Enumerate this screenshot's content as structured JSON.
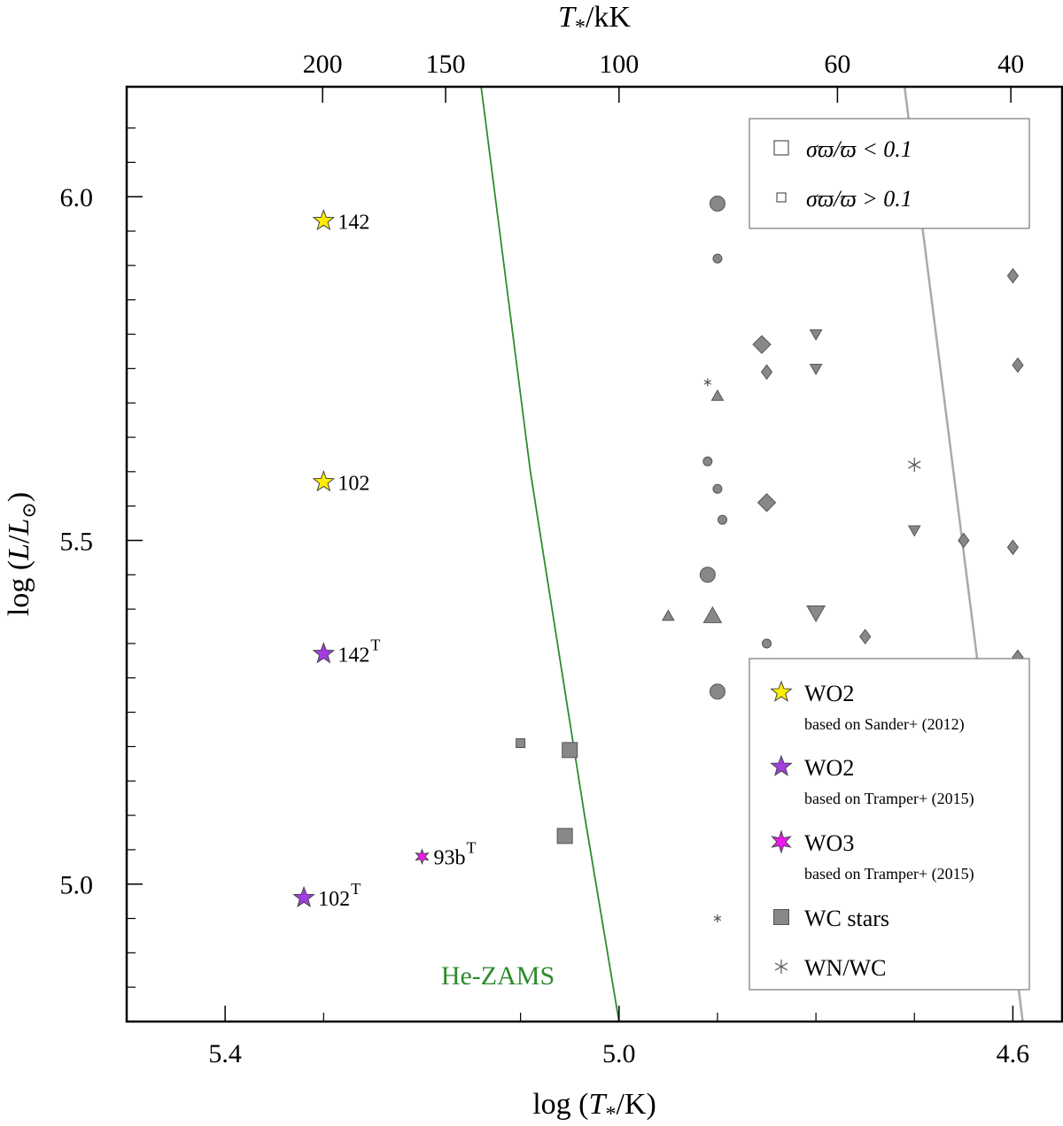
{
  "chart_data": {
    "type": "scatter",
    "title": "",
    "xlabel": "log (T*/K)",
    "ylabel": "log (L/L⊙)",
    "top_xlabel": "T*/kK",
    "xlim": [
      5.5,
      4.55
    ],
    "ylim": [
      4.8,
      6.16
    ],
    "x_ticks": [
      {
        "value": 5.4,
        "label": "5.4"
      },
      {
        "value": 5.0,
        "label": "5.0"
      },
      {
        "value": 4.6,
        "label": "4.6"
      }
    ],
    "y_ticks": [
      {
        "value": 6.0,
        "label": "6.0"
      },
      {
        "value": 5.5,
        "label": "5.5"
      },
      {
        "value": 5.0,
        "label": "5.0"
      }
    ],
    "top_ticks": [
      {
        "value": 200,
        "label": "200"
      },
      {
        "value": 150,
        "label": "150"
      },
      {
        "value": 100,
        "label": "100"
      },
      {
        "value": 60,
        "label": "60"
      },
      {
        "value": 40,
        "label": "40"
      }
    ],
    "lines": [
      {
        "name": "He-ZAMS",
        "color": "#2e8b2e",
        "label": "He-ZAMS",
        "points": [
          [
            5.14,
            6.16
          ],
          [
            5.09,
            5.6
          ],
          [
            5.035,
            5.1
          ],
          [
            5.0,
            4.8
          ]
        ]
      },
      {
        "name": "H-ZAMS",
        "color": "#aaaaaa",
        "label": "",
        "points": [
          [
            4.71,
            6.16
          ],
          [
            4.663,
            5.63
          ],
          [
            4.625,
            5.2
          ],
          [
            4.59,
            4.8
          ]
        ]
      }
    ],
    "stars": [
      {
        "name": "WO2 (Sander+ 2012)",
        "x": 5.3,
        "y": 5.965,
        "label": "142",
        "sup": "",
        "color": "#ffee00"
      },
      {
        "name": "WO2 (Sander+ 2012)",
        "x": 5.3,
        "y": 5.585,
        "label": "102",
        "sup": "",
        "color": "#ffee00"
      },
      {
        "name": "WO2 (Tramper+ 2015)",
        "x": 5.3,
        "y": 5.335,
        "label": "142",
        "sup": "T",
        "color": "#a23ee0"
      },
      {
        "name": "WO2 (Tramper+ 2015)",
        "x": 5.32,
        "y": 4.98,
        "label": "102",
        "sup": "T",
        "color": "#a23ee0"
      },
      {
        "name": "WO3 (Tramper+ 2015)",
        "x": 5.2,
        "y": 5.04,
        "label": "93b",
        "sup": "T",
        "color": "#ee1aee"
      }
    ],
    "gray_points": [
      {
        "x": 4.9,
        "y": 5.99,
        "shape": "circle",
        "size": "large"
      },
      {
        "x": 4.9,
        "y": 5.91,
        "shape": "circle",
        "size": "small"
      },
      {
        "x": 4.91,
        "y": 5.615,
        "shape": "circle",
        "size": "small"
      },
      {
        "x": 4.9,
        "y": 5.575,
        "shape": "circle",
        "size": "small"
      },
      {
        "x": 4.895,
        "y": 5.53,
        "shape": "circle",
        "size": "small"
      },
      {
        "x": 4.91,
        "y": 5.45,
        "shape": "circle",
        "size": "large"
      },
      {
        "x": 4.85,
        "y": 5.35,
        "shape": "circle",
        "size": "small"
      },
      {
        "x": 4.9,
        "y": 5.28,
        "shape": "circle",
        "size": "large"
      },
      {
        "x": 4.855,
        "y": 5.785,
        "shape": "diamond",
        "size": "large"
      },
      {
        "x": 4.85,
        "y": 5.745,
        "shape": "diamond",
        "size": "small"
      },
      {
        "x": 4.85,
        "y": 5.555,
        "shape": "diamond",
        "size": "large"
      },
      {
        "x": 4.75,
        "y": 5.36,
        "shape": "diamond",
        "size": "small"
      },
      {
        "x": 4.6,
        "y": 5.885,
        "shape": "diamond",
        "size": "small"
      },
      {
        "x": 4.595,
        "y": 5.755,
        "shape": "diamond",
        "size": "small"
      },
      {
        "x": 4.65,
        "y": 5.5,
        "shape": "diamond",
        "size": "small"
      },
      {
        "x": 4.6,
        "y": 5.49,
        "shape": "diamond",
        "size": "small"
      },
      {
        "x": 4.595,
        "y": 5.33,
        "shape": "diamond",
        "size": "small"
      },
      {
        "x": 4.655,
        "y": 5.26,
        "shape": "diamond",
        "size": "small"
      },
      {
        "x": 4.645,
        "y": 5.245,
        "shape": "diamond",
        "size": "small"
      },
      {
        "x": 4.655,
        "y": 5.225,
        "shape": "diamond",
        "size": "small"
      },
      {
        "x": 4.645,
        "y": 5.215,
        "shape": "diamond",
        "size": "small"
      },
      {
        "x": 4.8,
        "y": 5.8,
        "shape": "triangle-down",
        "size": "small"
      },
      {
        "x": 4.8,
        "y": 5.75,
        "shape": "triangle-down",
        "size": "small"
      },
      {
        "x": 4.7,
        "y": 5.515,
        "shape": "triangle-down",
        "size": "small"
      },
      {
        "x": 4.8,
        "y": 5.395,
        "shape": "triangle-down",
        "size": "large"
      },
      {
        "x": 4.9,
        "y": 5.71,
        "shape": "triangle-up",
        "size": "small"
      },
      {
        "x": 4.95,
        "y": 5.39,
        "shape": "triangle-up",
        "size": "small"
      },
      {
        "x": 4.905,
        "y": 5.39,
        "shape": "triangle-up",
        "size": "large"
      },
      {
        "x": 5.1,
        "y": 5.205,
        "shape": "square",
        "size": "small"
      },
      {
        "x": 5.05,
        "y": 5.195,
        "shape": "square",
        "size": "large"
      },
      {
        "x": 5.055,
        "y": 5.07,
        "shape": "square",
        "size": "large"
      },
      {
        "x": 4.91,
        "y": 5.73,
        "shape": "asterisk",
        "size": "small"
      },
      {
        "x": 4.7,
        "y": 5.61,
        "shape": "asterisk",
        "size": "large"
      },
      {
        "x": 4.9,
        "y": 4.95,
        "shape": "asterisk",
        "size": "small"
      }
    ],
    "legend_top": {
      "placement": "top-right",
      "entries": [
        {
          "symbol": "square-large",
          "text": "σϖ/ϖ < 0.1"
        },
        {
          "symbol": "square-small",
          "text": "σϖ/ϖ > 0.1"
        }
      ]
    },
    "legend_bottom": {
      "placement": "bottom-right",
      "entries": [
        {
          "symbol": "star",
          "color": "#ffee00",
          "text": "WO2",
          "sub": "based on Sander+ (2012)"
        },
        {
          "symbol": "star",
          "color": "#a23ee0",
          "text": "WO2",
          "sub": "based on Tramper+ (2015)"
        },
        {
          "symbol": "star6",
          "color": "#ee1aee",
          "text": "WO3",
          "sub": "based on Tramper+ (2015)"
        },
        {
          "symbol": "square",
          "color": "#888888",
          "text": "WC stars",
          "sub": ""
        },
        {
          "symbol": "asterisk",
          "color": "#555555",
          "text": "WN/WC",
          "sub": ""
        }
      ]
    }
  }
}
